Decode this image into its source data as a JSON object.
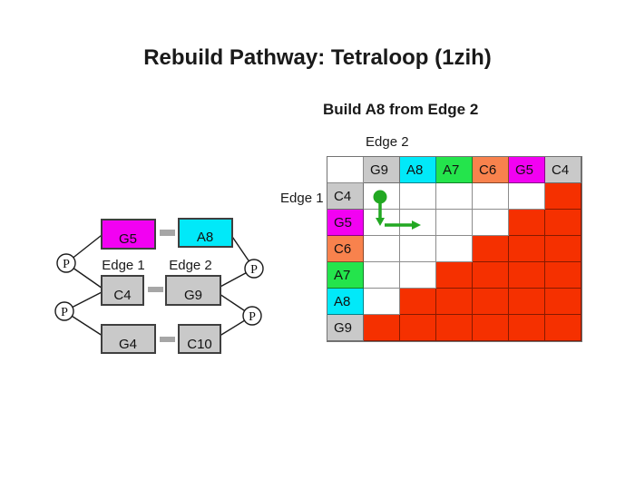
{
  "slide": {
    "title": "Rebuild Pathway: Tetraloop (1zih)",
    "subtitle": "Build A8 from Edge 2"
  },
  "colors": {
    "white": "#FFFFFF",
    "magenta": "#F201F2",
    "cyan": "#01E9F9",
    "green": "#24E44C",
    "orange": "#F8824D",
    "gray": "#C9C9C9",
    "red": "#F53000",
    "marker_green": "#22A822",
    "connector_gray": "#A6A6A6"
  },
  "diagram": {
    "edge1_label": "Edge 1",
    "edge2_label": "Edge 2",
    "phosphate_label": "P",
    "nodes": {
      "g5": "G5",
      "a8": "A8",
      "c4": "C4",
      "g9": "G9",
      "g4": "G4",
      "c10": "C10"
    }
  },
  "matrix": {
    "edge1_label": "Edge 1",
    "edge2_label": "Edge 2",
    "col_headers": [
      {
        "label": "G9",
        "color": "gray"
      },
      {
        "label": "A8",
        "color": "cyan"
      },
      {
        "label": "A7",
        "color": "green"
      },
      {
        "label": "C6",
        "color": "orange"
      },
      {
        "label": "G5",
        "color": "magenta"
      },
      {
        "label": "C4",
        "color": "gray"
      }
    ],
    "rows": [
      {
        "header": {
          "label": "C4",
          "color": "gray"
        },
        "cells": [
          0,
          0,
          0,
          0,
          0,
          1
        ]
      },
      {
        "header": {
          "label": "G5",
          "color": "magenta"
        },
        "cells": [
          0,
          0,
          0,
          0,
          1,
          1
        ]
      },
      {
        "header": {
          "label": "C6",
          "color": "orange"
        },
        "cells": [
          0,
          0,
          0,
          1,
          1,
          1
        ]
      },
      {
        "header": {
          "label": "A7",
          "color": "green"
        },
        "cells": [
          0,
          0,
          1,
          1,
          1,
          1
        ]
      },
      {
        "header": {
          "label": "A8",
          "color": "cyan"
        },
        "cells": [
          0,
          1,
          1,
          1,
          1,
          1
        ]
      },
      {
        "header": {
          "label": "G9",
          "color": "gray"
        },
        "cells": [
          1,
          1,
          1,
          1,
          1,
          1
        ]
      }
    ]
  }
}
